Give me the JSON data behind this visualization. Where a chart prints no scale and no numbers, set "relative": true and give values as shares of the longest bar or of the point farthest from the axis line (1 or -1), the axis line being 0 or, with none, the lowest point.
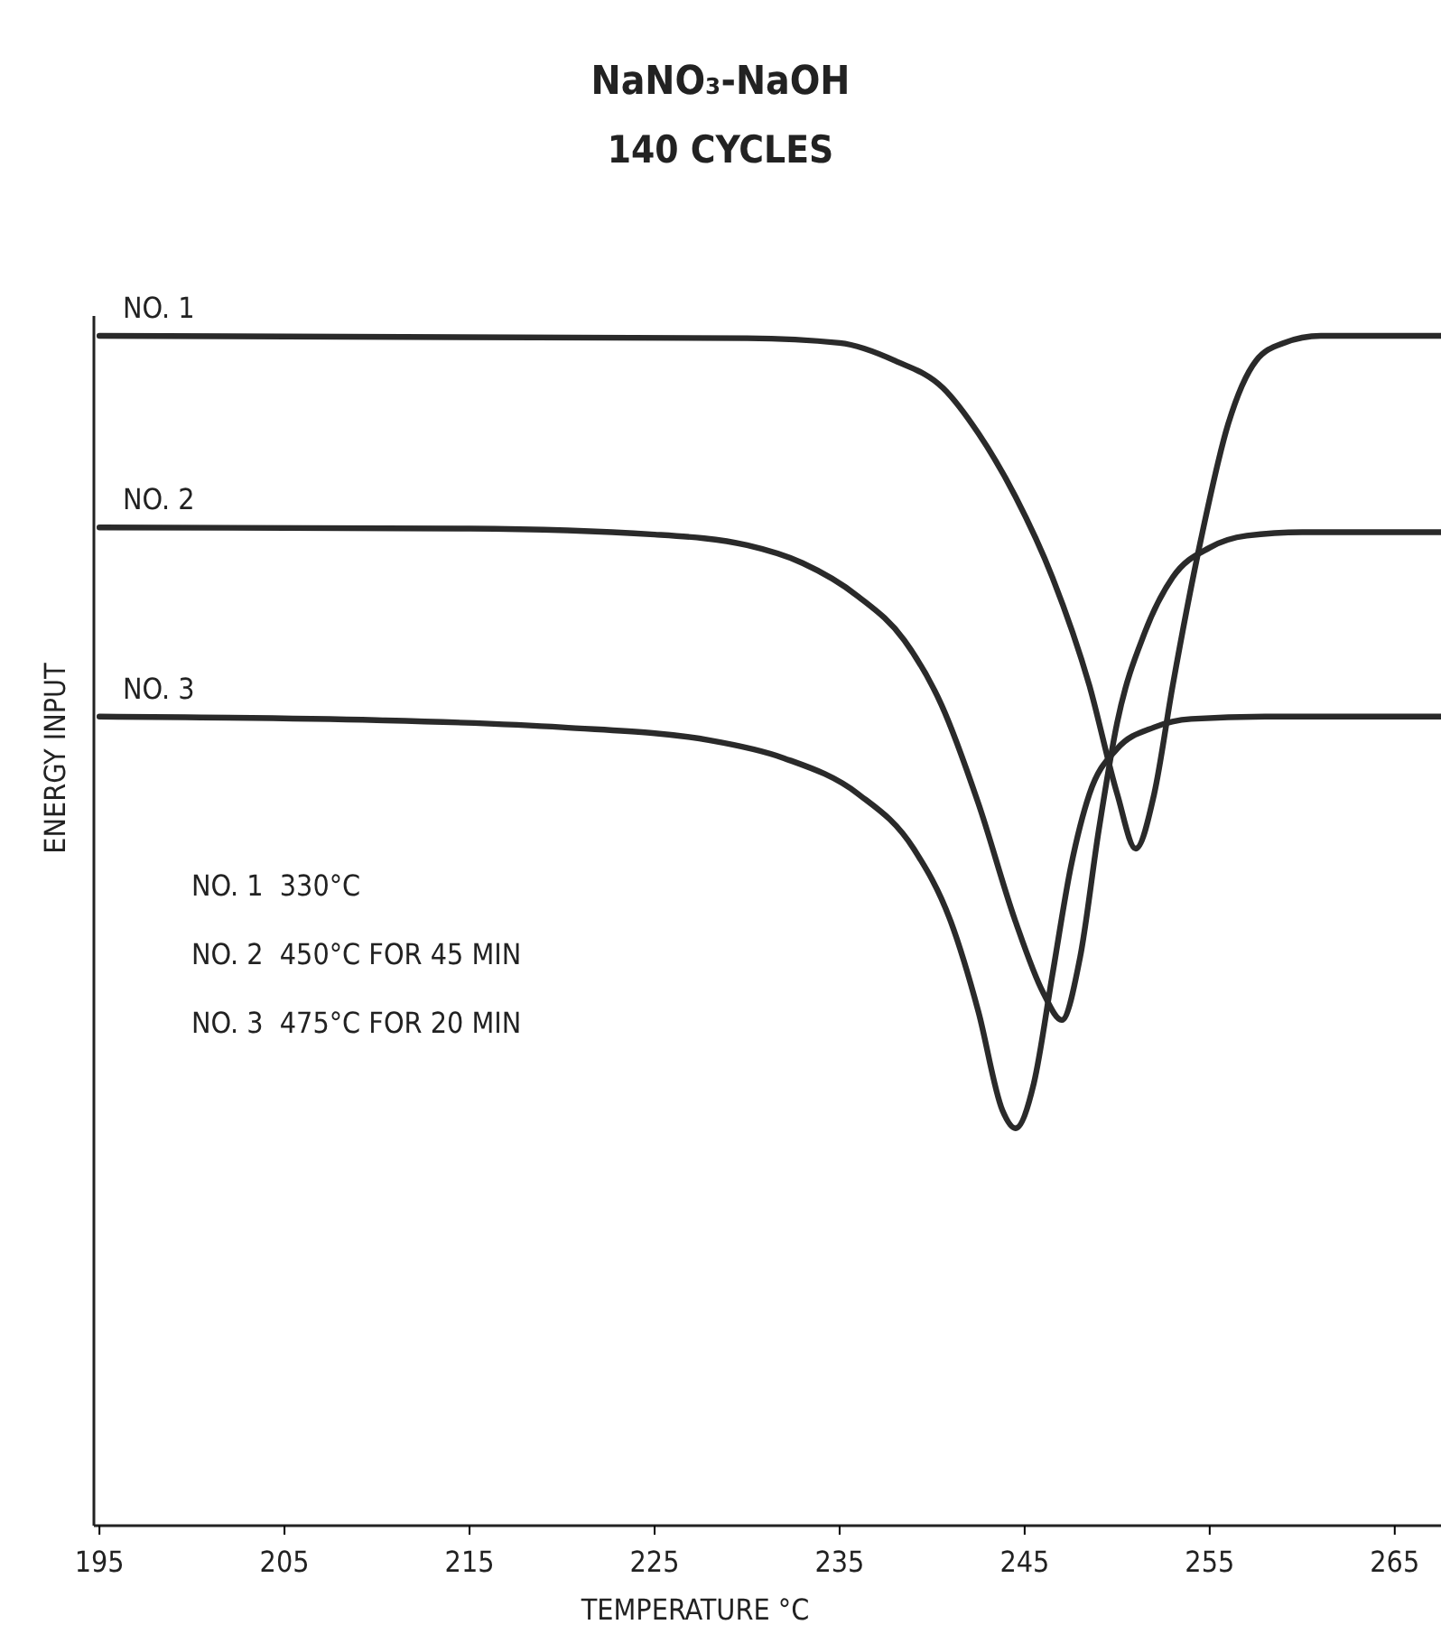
{
  "chart_data": {
    "type": "line",
    "title": "NaNO₃-NaOH",
    "subtitle": "140 CYCLES",
    "xlabel": "TEMPERATURE °C",
    "ylabel": "ENERGY INPUT",
    "relative": true,
    "xlim": [
      194.7,
      267.5
    ],
    "xticks": [
      195,
      205,
      215,
      225,
      235,
      245,
      255,
      265
    ],
    "grid": false,
    "marker": "none",
    "line_style": "solid",
    "annotations": [
      "NO. 1  330°C",
      "NO. 2  450°C FOR 45 MIN",
      "NO. 3  475°C FOR 20 MIN"
    ],
    "series": [
      {
        "name": "NO. 1",
        "color": "#2a2a2a",
        "x": [
          195,
          230,
          235,
          238,
          240.6,
          242.5,
          244.5,
          246.5,
          248.5,
          250,
          251,
          252,
          253,
          254.5,
          256,
          257.5,
          259,
          261,
          267.5
        ],
        "values": [
          1.0,
          0.998,
          0.994,
          0.979,
          0.956,
          0.918,
          0.865,
          0.797,
          0.706,
          0.615,
          0.569,
          0.615,
          0.706,
          0.827,
          0.926,
          0.979,
          0.994,
          1.0,
          1.0
        ]
      },
      {
        "name": "NO. 2",
        "color": "#2a2a2a",
        "x": [
          195,
          215,
          225,
          230,
          233,
          236,
          238.5,
          240.5,
          242.5,
          244.5,
          246,
          247,
          248,
          249,
          250,
          251.5,
          253,
          255,
          257,
          260,
          267.5
        ],
        "values": [
          0.839,
          0.838,
          0.833,
          0.824,
          0.809,
          0.781,
          0.744,
          0.69,
          0.607,
          0.508,
          0.448,
          0.425,
          0.478,
          0.584,
          0.675,
          0.751,
          0.797,
          0.822,
          0.832,
          0.835,
          0.835
        ]
      },
      {
        "name": "NO. 3",
        "color": "#2a2a2a",
        "x": [
          195,
          210,
          220,
          228,
          232,
          236,
          239,
          241,
          242.5,
          243.8,
          244.5,
          245.5,
          246.5,
          247.5,
          248.5,
          250,
          252,
          254,
          258,
          267.5
        ],
        "values": [
          0.68,
          0.677,
          0.671,
          0.66,
          0.645,
          0.615,
          0.569,
          0.508,
          0.432,
          0.349,
          0.334,
          0.372,
          0.463,
          0.554,
          0.615,
          0.653,
          0.671,
          0.678,
          0.68,
          0.68
        ]
      }
    ]
  }
}
